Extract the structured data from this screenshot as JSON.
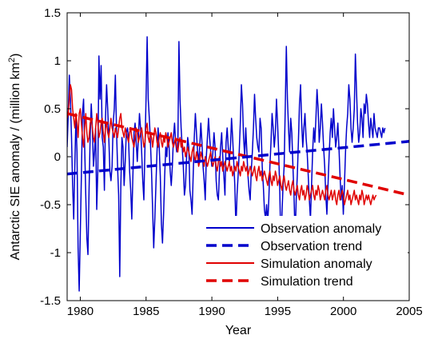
{
  "chart_data": {
    "type": "line",
    "xlabel": "Year",
    "ylabel_main": "Antarctic SIE anomaly / (million km",
    "ylabel_sup": "2",
    "ylabel_close": ")",
    "xlim": [
      1979,
      2005
    ],
    "ylim": [
      -1.5,
      1.5
    ],
    "x_ticks": [
      1980,
      1985,
      1990,
      1995,
      2000,
      2005
    ],
    "y_ticks": [
      -1.5,
      -1,
      -0.5,
      0,
      0.5,
      1,
      1.5
    ],
    "x_tick_labels": [
      "1980",
      "1985",
      "1990",
      "1995",
      "2000",
      "2005"
    ],
    "y_tick_labels": [
      "-1.5",
      "-1",
      "-0.5",
      "0",
      "0.5",
      "1",
      "1.5"
    ],
    "grid": false,
    "legend_position": "bottom-right",
    "series": [
      {
        "name": "Observation anomaly",
        "color": "#0000cc",
        "style": "solid",
        "x_start": 1979.0,
        "x_step": 0.0833,
        "values": [
          0.1,
          0.45,
          0.85,
          0.6,
          0.2,
          -0.3,
          -0.65,
          -0.1,
          0.4,
          0.05,
          -0.95,
          -1.4,
          -0.8,
          -0.2,
          0.45,
          0.6,
          0.1,
          -0.4,
          -0.85,
          -1.02,
          -0.35,
          0.2,
          0.55,
          0.3,
          -0.1,
          0.05,
          0.3,
          -0.55,
          -0.15,
          1.05,
          0.6,
          0.95,
          0.2,
          0.1,
          -0.35,
          0.4,
          0.75,
          0.5,
          0.2,
          -0.15,
          -0.25,
          -0.1,
          0.35,
          0.5,
          0.85,
          0.3,
          -0.1,
          -0.4,
          -1.25,
          -0.3,
          0.2,
          0.1,
          -0.3,
          -0.05,
          0.25,
          0.3,
          0.2,
          -0.15,
          -0.35,
          -0.65,
          -0.2,
          0.25,
          0.35,
          0.15,
          -0.05,
          0.2,
          0.45,
          0.3,
          0.05,
          -0.25,
          -0.45,
          0.1,
          0.6,
          1.25,
          0.6,
          0.4,
          0.15,
          -0.15,
          -0.55,
          -0.95,
          -0.65,
          -0.3,
          0.05,
          0.3,
          0.1,
          -0.2,
          -0.7,
          -0.9,
          -0.6,
          -0.2,
          0.1,
          0.0,
          0.25,
          0.1,
          -0.15,
          -0.3,
          -0.1,
          0.2,
          0.35,
          0.15,
          0.05,
          0.1,
          1.2,
          0.6,
          0.3,
          0.1,
          -0.1,
          -0.4,
          -0.3,
          0.0,
          0.2,
          0.1,
          -0.35,
          -0.45,
          -0.6,
          -0.2,
          0.2,
          0.45,
          0.25,
          0.05,
          -0.05,
          0.1,
          0.35,
          0.15,
          -0.1,
          -0.25,
          -0.45,
          0.0,
          0.2,
          0.4,
          0.2,
          0.05,
          -0.1,
          0.05,
          0.25,
          0.1,
          -0.25,
          -0.4,
          -0.45,
          -0.15,
          0.1,
          0.25,
          0.0,
          -0.2,
          -0.4,
          0.15,
          0.3,
          0.1,
          -0.05,
          0.1,
          0.4,
          0.2,
          -0.05,
          -0.3,
          -0.75,
          -0.4,
          -0.2,
          0.05,
          0.35,
          0.75,
          0.55,
          0.2,
          0.0,
          0.3,
          0.05,
          -0.2,
          -0.35,
          -0.45,
          -0.15,
          0.05,
          0.3,
          0.65,
          0.4,
          0.2,
          0.1,
          0.05,
          0.4,
          0.3,
          -0.1,
          -0.3,
          -0.55,
          -0.65,
          -0.5,
          -0.7,
          -0.45,
          -0.1,
          0.15,
          0.45,
          0.3,
          0.1,
          0.25,
          0.6,
          0.35,
          0.05,
          -0.35,
          -0.9,
          -0.6,
          -0.3,
          -0.1,
          0.5,
          1.15,
          0.6,
          0.3,
          0.05,
          0.4,
          0.25,
          -0.1,
          -0.4,
          -0.85,
          -0.45,
          -0.2,
          0.15,
          0.55,
          0.75,
          0.35,
          0.1,
          0.3,
          0.45,
          0.2,
          0.05,
          -0.2,
          -0.45,
          -0.65,
          -0.3,
          0.05,
          0.3,
          0.15,
          0.4,
          0.7,
          0.5,
          0.15,
          0.3,
          0.55,
          0.35,
          0.1,
          -0.1,
          -0.4,
          -0.6,
          -0.3,
          0.0,
          0.25,
          0.4,
          0.2,
          0.5,
          0.3,
          0.1,
          0.2,
          0.35,
          0.1,
          -0.2,
          -0.45,
          -0.3,
          -0.6,
          -0.3,
          0.05,
          0.3,
          0.45,
          0.75,
          0.6,
          0.3,
          0.15,
          0.3,
          0.5,
          1.07,
          0.7,
          0.35,
          0.15,
          0.25,
          0.5,
          0.4,
          0.2,
          0.55,
          0.45,
          0.65,
          0.55,
          0.35,
          0.2,
          0.4,
          0.3,
          0.2,
          0.45,
          0.3,
          0.25,
          0.2,
          0.3,
          0.3,
          0.25,
          0.2,
          0.3,
          0.25,
          0.3
        ]
      },
      {
        "name": "Observation trend",
        "color": "#0000cc",
        "style": "dashed",
        "x": [
          1979,
          2005
        ],
        "values": [
          -0.18,
          0.16
        ]
      },
      {
        "name": "Simulation anomaly",
        "color": "#e00000",
        "style": "solid",
        "x_start": 1979.0,
        "x_step": 0.0833,
        "values": [
          0.4,
          0.45,
          0.6,
          0.75,
          0.7,
          0.5,
          0.4,
          0.3,
          0.45,
          0.35,
          0.2,
          0.45,
          0.5,
          0.35,
          0.2,
          0.1,
          0.3,
          0.45,
          0.25,
          0.15,
          0.2,
          0.35,
          0.4,
          0.3,
          0.2,
          0.15,
          0.3,
          0.45,
          0.35,
          0.2,
          0.25,
          0.35,
          0.4,
          0.25,
          0.15,
          0.3,
          0.35,
          0.25,
          0.2,
          0.3,
          0.4,
          0.3,
          0.25,
          0.2,
          0.3,
          0.25,
          0.2,
          0.3,
          0.4,
          0.45,
          0.3,
          0.25,
          0.2,
          0.3,
          0.25,
          0.2,
          0.15,
          0.25,
          0.3,
          0.2,
          0.15,
          0.1,
          0.2,
          0.3,
          0.25,
          0.15,
          0.2,
          0.25,
          0.3,
          0.2,
          0.1,
          0.15,
          0.3,
          0.35,
          0.2,
          0.15,
          0.25,
          0.2,
          0.1,
          0.2,
          0.3,
          0.25,
          0.15,
          0.1,
          0.2,
          0.25,
          0.15,
          0.1,
          0.2,
          0.15,
          0.25,
          0.2,
          0.1,
          0.15,
          0.2,
          0.25,
          0.15,
          0.1,
          0.15,
          0.2,
          0.1,
          0.05,
          0.15,
          0.2,
          0.1,
          0.15,
          0.05,
          0.1,
          0.0,
          0.05,
          0.1,
          0.05,
          0.0,
          -0.05,
          0.05,
          0.1,
          0.0,
          -0.05,
          0.05,
          0.0,
          -0.1,
          -0.05,
          0.05,
          0.0,
          -0.05,
          -0.1,
          0.0,
          -0.05,
          -0.1,
          -0.05,
          0.0,
          0.05,
          -0.05,
          -0.1,
          -0.05,
          0.0,
          -0.1,
          -0.15,
          -0.05,
          0.0,
          -0.1,
          -0.05,
          -0.15,
          -0.1,
          -0.05,
          -0.1,
          -0.15,
          -0.1,
          -0.05,
          -0.15,
          -0.1,
          -0.2,
          -0.15,
          -0.1,
          -0.15,
          -0.05,
          -0.1,
          -0.15,
          -0.2,
          -0.1,
          -0.15,
          -0.05,
          -0.1,
          -0.15,
          -0.1,
          -0.2,
          -0.15,
          -0.1,
          -0.15,
          -0.2,
          -0.15,
          -0.1,
          -0.2,
          -0.25,
          -0.15,
          -0.1,
          -0.2,
          -0.15,
          -0.25,
          -0.2,
          -0.15,
          -0.2,
          -0.25,
          -0.3,
          -0.2,
          -0.15,
          -0.25,
          -0.3,
          -0.2,
          -0.25,
          -0.15,
          -0.2,
          -0.3,
          -0.25,
          -0.2,
          -0.3,
          -0.35,
          -0.25,
          -0.2,
          -0.3,
          -0.35,
          -0.3,
          -0.25,
          -0.35,
          -0.4,
          -0.3,
          -0.25,
          -0.35,
          -0.4,
          -0.35,
          -0.3,
          -0.4,
          -0.45,
          -0.35,
          -0.3,
          -0.4,
          -0.35,
          -0.45,
          -0.4,
          -0.3,
          -0.35,
          -0.45,
          -0.4,
          -0.35,
          -0.3,
          -0.4,
          -0.45,
          -0.35,
          -0.4,
          -0.3,
          -0.35,
          -0.45,
          -0.4,
          -0.35,
          -0.4,
          -0.45,
          -0.35,
          -0.3,
          -0.4,
          -0.45,
          -0.4,
          -0.35,
          -0.45,
          -0.4,
          -0.35,
          -0.45,
          -0.5,
          -0.4,
          -0.35,
          -0.45,
          -0.4,
          -0.35,
          -0.4,
          -0.5,
          -0.45,
          -0.4,
          -0.35,
          -0.45,
          -0.4,
          -0.5,
          -0.45,
          -0.4,
          -0.35,
          -0.45,
          -0.4,
          -0.45,
          -0.5,
          -0.4,
          -0.45,
          -0.35,
          -0.4,
          -0.5,
          -0.45,
          -0.4,
          -0.45,
          -0.4,
          -0.45,
          -0.5,
          -0.45,
          -0.4,
          -0.45,
          -0.42,
          -0.4
        ]
      },
      {
        "name": "Simulation trend",
        "color": "#e00000",
        "style": "dashed",
        "x": [
          1979,
          2005
        ],
        "values": [
          0.45,
          -0.4
        ]
      }
    ]
  }
}
